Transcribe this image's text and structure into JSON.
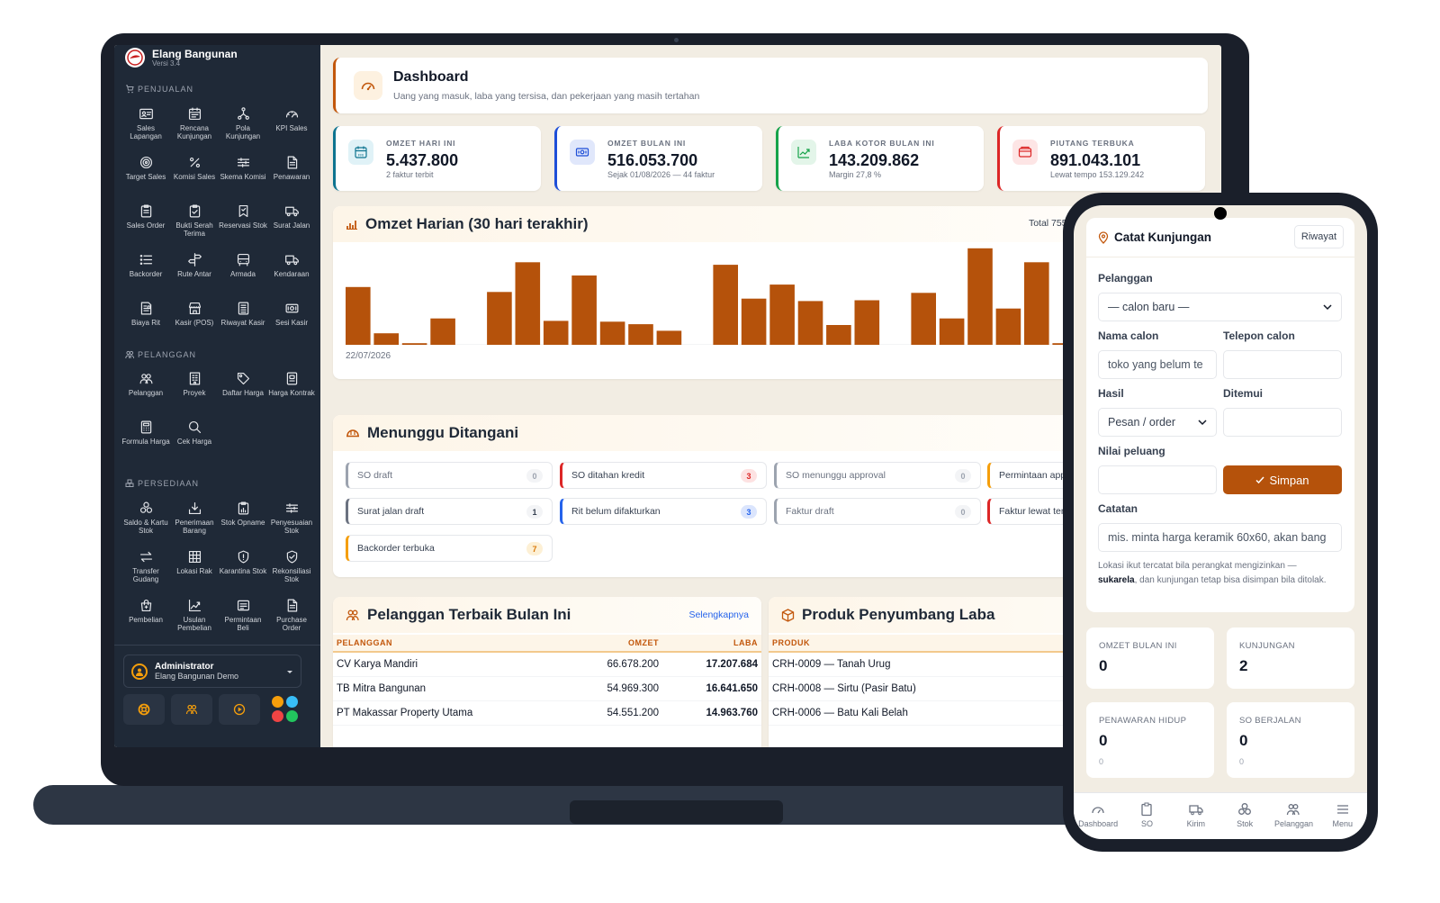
{
  "app": {
    "name": "Elang Bangunan",
    "version": "Versi 3.4"
  },
  "sidebar": {
    "sections": [
      {
        "title": "PENJUALAN",
        "items": [
          {
            "label": "Sales Lapangan",
            "icon": "id-card-icon"
          },
          {
            "label": "Rencana Kunjungan",
            "icon": "calendar-icon"
          },
          {
            "label": "Pola Kunjungan",
            "icon": "route-nodes-icon"
          },
          {
            "label": "KPI Sales",
            "icon": "gauge-icon"
          },
          {
            "label": "Target Sales",
            "icon": "target-icon"
          },
          {
            "label": "Komisi Sales",
            "icon": "percent-icon"
          },
          {
            "label": "Skema Komisi",
            "icon": "sliders-icon"
          },
          {
            "label": "Penawaran",
            "icon": "document-icon"
          },
          {
            "label": "Sales Order",
            "icon": "clipboard-icon"
          },
          {
            "label": "Bukti Serah Terima",
            "icon": "clipboard-check-icon"
          },
          {
            "label": "Reservasi Stok",
            "icon": "bookmark-icon"
          },
          {
            "label": "Surat Jalan",
            "icon": "truck-icon"
          },
          {
            "label": "Backorder",
            "icon": "list-icon"
          },
          {
            "label": "Rute Antar",
            "icon": "signpost-icon"
          },
          {
            "label": "Armada",
            "icon": "bus-icon"
          },
          {
            "label": "Kendaraan",
            "icon": "truck-icon"
          },
          {
            "label": "Biaya Rit",
            "icon": "receipt-icon"
          },
          {
            "label": "Kasir (POS)",
            "icon": "store-icon"
          },
          {
            "label": "Riwayat Kasir",
            "icon": "ledger-icon"
          },
          {
            "label": "Sesi Kasir",
            "icon": "cash-icon"
          }
        ]
      },
      {
        "title": "PELANGGAN",
        "items": [
          {
            "label": "Pelanggan",
            "icon": "users-icon"
          },
          {
            "label": "Proyek",
            "icon": "building-icon"
          },
          {
            "label": "Daftar Harga",
            "icon": "tag-icon"
          },
          {
            "label": "Harga Kontrak",
            "icon": "contract-icon"
          },
          {
            "label": "Formula Harga",
            "icon": "calculator-icon"
          },
          {
            "label": "Cek Harga",
            "icon": "search-icon"
          }
        ]
      },
      {
        "title": "PERSEDIAAN",
        "items": [
          {
            "label": "Saldo & Kartu Stok",
            "icon": "boxes-icon"
          },
          {
            "label": "Penerimaan Barang",
            "icon": "inbox-download-icon"
          },
          {
            "label": "Stok Opname",
            "icon": "clipboard-chart-icon"
          },
          {
            "label": "Penyesuaian Stok",
            "icon": "sliders-icon"
          },
          {
            "label": "Transfer Gudang",
            "icon": "arrows-swap-icon"
          },
          {
            "label": "Lokasi Rak",
            "icon": "grid-icon"
          },
          {
            "label": "Karantina Stok",
            "icon": "shield-alert-icon"
          },
          {
            "label": "Rekonsiliasi Stok",
            "icon": "shield-check-icon"
          },
          {
            "label": "Pembelian",
            "icon": "bag-icon"
          },
          {
            "label": "Usulan Pembelian",
            "icon": "trend-icon"
          },
          {
            "label": "Permintaan Beli",
            "icon": "form-icon"
          },
          {
            "label": "Purchase Order",
            "icon": "document-icon"
          }
        ]
      }
    ],
    "user": {
      "name": "Administrator",
      "org": "Elang Bangunan Demo"
    }
  },
  "header": {
    "title": "Dashboard",
    "subtitle": "Uang yang masuk, laba yang tersisa, dan pekerjaan yang masih tertahan"
  },
  "stats": [
    {
      "label": "OMZET HARI INI",
      "value": "5.437.800",
      "sub": "2 faktur terbit",
      "color": "#0e7490",
      "bg": "#e0f2f7"
    },
    {
      "label": "OMZET BULAN INI",
      "value": "516.053.700",
      "sub": "Sejak 01/08/2026 — 44 faktur",
      "color": "#1d4ed8",
      "bg": "#e0e7fb"
    },
    {
      "label": "LABA KOTOR BULAN INI",
      "value": "143.209.862",
      "sub": "Margin 27,8 %",
      "color": "#16a34a",
      "bg": "#e3f5e9"
    },
    {
      "label": "PIUTANG TERBUKA",
      "value": "891.043.101",
      "sub": "Lewat tempo 153.129.242",
      "color": "#dc2626",
      "bg": "#fde5e5"
    }
  ],
  "omzet": {
    "title": "Omzet Harian (30 hari terakhir)",
    "total": "Total 755.286"
  },
  "chart_data": {
    "type": "bar",
    "x_start_label": "22/07/2026",
    "bar_color": "#b5520b",
    "values": [
      70,
      14,
      2,
      32,
      0,
      64,
      100,
      29,
      84,
      28,
      25,
      17,
      0,
      97,
      56,
      73,
      53,
      24,
      54,
      0,
      63,
      32,
      117,
      44,
      100,
      2,
      0,
      0,
      0,
      0
    ]
  },
  "pending": {
    "title": "Menunggu Ditangani",
    "items": [
      {
        "label": "SO draft",
        "count": "0",
        "color": "#9ca3af"
      },
      {
        "label": "SO ditahan kredit",
        "count": "3",
        "color": "#dc2626"
      },
      {
        "label": "SO menunggu approval",
        "count": "0",
        "color": "#9ca3af"
      },
      {
        "label": "Permintaan app",
        "count": "",
        "color": "#f59e0b"
      },
      {
        "label": "Surat jalan draft",
        "count": "1",
        "color": "#6b7280"
      },
      {
        "label": "Rit belum difakturkan",
        "count": "3",
        "color": "#2563eb"
      },
      {
        "label": "Faktur draft",
        "count": "0",
        "color": "#9ca3af"
      },
      {
        "label": "Faktur lewat tem",
        "count": "",
        "color": "#dc2626"
      },
      {
        "label": "Backorder terbuka",
        "count": "7",
        "color": "#f59e0b"
      }
    ]
  },
  "top_customers": {
    "title": "Pelanggan Terbaik Bulan Ini",
    "link": "Selengkapnya",
    "cols": [
      "PELANGGAN",
      "OMZET",
      "LABA"
    ],
    "rows": [
      [
        "CV Karya Mandiri",
        "66.678.200",
        "17.207.684"
      ],
      [
        "TB Mitra Bangunan",
        "54.969.300",
        "16.641.650"
      ],
      [
        "PT Makassar Property Utama",
        "54.551.200",
        "14.963.760"
      ]
    ]
  },
  "top_products": {
    "title": "Produk Penyumbang Laba",
    "cols": [
      "PRODUK"
    ],
    "rows": [
      [
        "CRH-0009 — Tanah Urug"
      ],
      [
        "CRH-0008 — Sirtu (Pasir Batu)"
      ],
      [
        "CRH-0006 — Batu Kali Belah"
      ]
    ]
  },
  "phone": {
    "title": "Catat Kunjungan",
    "history_btn": "Riwayat",
    "pelanggan_label": "Pelanggan",
    "pelanggan_value": "— calon baru —",
    "nama_label": "Nama calon",
    "nama_placeholder": "toko yang belum te",
    "telepon_label": "Telepon calon",
    "hasil_label": "Hasil",
    "hasil_value": "Pesan / order",
    "ditemui_label": "Ditemui",
    "nilai_label": "Nilai peluang",
    "save_btn": "Simpan",
    "catatan_label": "Catatan",
    "catatan_placeholder": "mis. minta harga keramik 60x60, akan bang",
    "note_1": "Lokasi ikut tercatat bila perangkat mengizinkan —",
    "note_bold": "sukarela",
    "note_2": ", dan kunjungan tetap bisa disimpan bila ditolak.",
    "metrics": [
      {
        "label": "OMZET BULAN INI",
        "value": "0",
        "sub": ""
      },
      {
        "label": "KUNJUNGAN",
        "value": "2",
        "sub": ""
      },
      {
        "label": "PENAWARAN HIDUP",
        "value": "0",
        "sub": "0"
      },
      {
        "label": "SO BERJALAN",
        "value": "0",
        "sub": "0"
      }
    ],
    "tabs": [
      "Dashboard",
      "SO",
      "Kirim",
      "Stok",
      "Pelanggan",
      "Menu"
    ]
  }
}
